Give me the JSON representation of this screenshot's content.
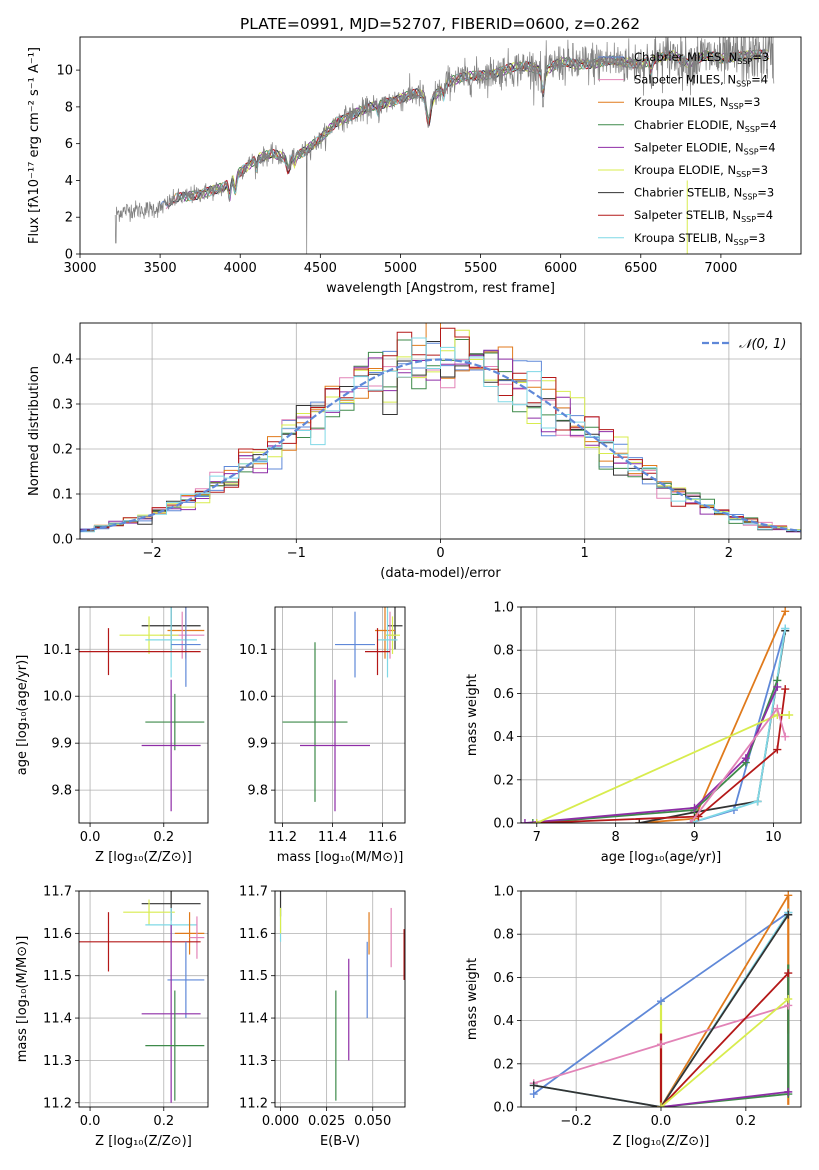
{
  "chart_data": [
    {
      "id": "spectrum",
      "type": "line",
      "title": "PLATE=0991, MJD=52707, FIBERID=0600, z=0.262",
      "xlabel": "wavelength [Angstrom, rest frame]",
      "ylabel": "Flux [fλ10⁻¹⁷ erg cm⁻² s⁻¹ A⁻¹]",
      "xlim": [
        3000,
        7500
      ],
      "ylim": [
        0,
        11.8
      ],
      "xticks": [
        3000,
        3500,
        4000,
        4500,
        5000,
        5500,
        6000,
        6500,
        7000
      ],
      "yticks": [
        0,
        2,
        4,
        6,
        8,
        10
      ],
      "legend_position": "top-right",
      "legend": [
        {
          "label": "Chabrier MILES, N",
          "sub": "SSP",
          "tail": "=3",
          "color": "#5f88d8"
        },
        {
          "label": "Salpeter MILES, N",
          "sub": "SSP",
          "tail": "=4",
          "color": "#e283b7"
        },
        {
          "label": "Kroupa MILES, N",
          "sub": "SSP",
          "tail": "=3",
          "color": "#e07a1c"
        },
        {
          "label": "Chabrier ELODIE, N",
          "sub": "SSP",
          "tail": "=4",
          "color": "#3e8a4a"
        },
        {
          "label": "Salpeter ELODIE, N",
          "sub": "SSP",
          "tail": "=4",
          "color": "#8e2da6"
        },
        {
          "label": "Kroupa ELODIE, N",
          "sub": "SSP",
          "tail": "=3",
          "color": "#d8ec4e"
        },
        {
          "label": "Chabrier STELIB, N",
          "sub": "SSP",
          "tail": "=3",
          "color": "#333333"
        },
        {
          "label": "Salpeter STELIB, N",
          "sub": "SSP",
          "tail": "=4",
          "color": "#b41818"
        },
        {
          "label": "Kroupa STELIB, N",
          "sub": "SSP",
          "tail": "=3",
          "color": "#7fd8e6"
        }
      ],
      "data_trend": {
        "x": [
          3220,
          3300,
          3400,
          3500,
          3600,
          3700,
          3800,
          3900,
          4000,
          4100,
          4200,
          4300,
          4400,
          4500,
          4600,
          4700,
          4800,
          4900,
          5000,
          5100,
          5200,
          5300,
          5400,
          5500,
          5600,
          5700,
          5800,
          5900,
          6000,
          6100,
          6200,
          6300,
          6400,
          6500,
          6600,
          6700,
          6800,
          6900,
          7000,
          7100,
          7200
        ],
        "y": [
          2.2,
          2.4,
          2.4,
          2.5,
          3.0,
          3.2,
          3.4,
          3.6,
          4.5,
          5.2,
          5.4,
          5.2,
          5.6,
          6.2,
          7.2,
          7.6,
          7.9,
          8.2,
          8.5,
          8.7,
          8.5,
          9.4,
          9.6,
          9.7,
          9.9,
          10.1,
          10.2,
          10.0,
          10.4,
          10.3,
          10.4,
          10.5,
          10.4,
          10.4,
          10.6,
          10.8,
          10.4,
          10.8,
          10.6,
          10.8,
          10.8
        ]
      }
    },
    {
      "id": "residuals",
      "type": "histogram",
      "xlabel": "(data-model)/error",
      "ylabel": "Normed distribution",
      "xlim": [
        -2.5,
        2.5
      ],
      "ylim": [
        0,
        0.48
      ],
      "xticks": [
        -2,
        -1,
        0,
        1,
        2
      ],
      "yticks": [
        0.0,
        0.1,
        0.2,
        0.3,
        0.4
      ],
      "legend_position": "top-right",
      "legend": [
        {
          "label": "N(0,1)",
          "label_display": "𝒩(0, 1)",
          "color": "#5f88d8",
          "style": "dashed"
        }
      ],
      "gaussian": {
        "mean": 0,
        "sigma": 1
      },
      "bin_width": 0.1
    },
    {
      "id": "age_vs_Z",
      "type": "scatter",
      "xlabel": "Z [log₁₀(Z/Z⊙)]",
      "ylabel": "age  [log₁₀(age/yr)]",
      "xlim": [
        -0.03,
        0.32
      ],
      "ylim": [
        9.73,
        10.19
      ],
      "xticks": [
        0.0,
        0.2
      ],
      "yticks": [
        9.8,
        9.9,
        10.0,
        10.1
      ],
      "points": [
        {
          "x": 0.22,
          "y": 10.15,
          "xerr": 0.08,
          "yerr": 0.05,
          "color": "#333333"
        },
        {
          "x": 0.26,
          "y": 10.14,
          "xerr": 0.05,
          "yerr": 0.06,
          "color": "#e07a1c"
        },
        {
          "x": 0.25,
          "y": 10.13,
          "xerr": 0.06,
          "yerr": 0.05,
          "color": "#e283b7"
        },
        {
          "x": 0.16,
          "y": 10.13,
          "xerr": 0.08,
          "yerr": 0.04,
          "color": "#d8ec4e"
        },
        {
          "x": 0.22,
          "y": 10.12,
          "xerr": 0.07,
          "yerr": 0.08,
          "color": "#7fd8e6"
        },
        {
          "x": 0.26,
          "y": 10.11,
          "xerr": 0.04,
          "yerr": 0.09,
          "color": "#5f88d8"
        },
        {
          "x": 0.05,
          "y": 10.095,
          "xerr": 0.25,
          "yerr": 0.05,
          "color": "#b41818"
        },
        {
          "x": 0.23,
          "y": 9.945,
          "xerr": 0.08,
          "yerr": 0.06,
          "color": "#3e8a4a"
        },
        {
          "x": 0.22,
          "y": 9.895,
          "xerr": 0.08,
          "yerr": 0.14,
          "color": "#8e2da6"
        }
      ]
    },
    {
      "id": "age_vs_mass",
      "type": "scatter",
      "xlabel": "mass [log₁₀(M/M⊙)]",
      "ylabel": "",
      "xlim": [
        11.17,
        11.69
      ],
      "ylim": [
        9.73,
        10.19
      ],
      "xticks": [
        11.2,
        11.4,
        11.6
      ],
      "yticks": [
        9.8,
        9.9,
        10.0,
        10.1
      ],
      "points": [
        {
          "x": 11.65,
          "y": 10.15,
          "xerr": 0.03,
          "yerr": 0.05,
          "color": "#333333"
        },
        {
          "x": 11.61,
          "y": 10.14,
          "xerr": 0.04,
          "yerr": 0.06,
          "color": "#e07a1c"
        },
        {
          "x": 11.63,
          "y": 10.13,
          "xerr": 0.02,
          "yerr": 0.05,
          "color": "#e283b7"
        },
        {
          "x": 11.64,
          "y": 10.13,
          "xerr": 0.03,
          "yerr": 0.04,
          "color": "#d8ec4e"
        },
        {
          "x": 11.62,
          "y": 10.12,
          "xerr": 0.04,
          "yerr": 0.08,
          "color": "#7fd8e6"
        },
        {
          "x": 11.49,
          "y": 10.11,
          "xerr": 0.08,
          "yerr": 0.07,
          "color": "#5f88d8"
        },
        {
          "x": 11.58,
          "y": 10.095,
          "xerr": 0.05,
          "yerr": 0.05,
          "color": "#b41818"
        },
        {
          "x": 11.33,
          "y": 9.945,
          "xerr": 0.13,
          "yerr": 0.17,
          "color": "#3e8a4a"
        },
        {
          "x": 11.41,
          "y": 9.895,
          "xerr": 0.14,
          "yerr": 0.14,
          "color": "#8e2da6"
        }
      ]
    },
    {
      "id": "weight_vs_age",
      "type": "line",
      "xlabel": "age  [log₁₀(age/yr)]",
      "ylabel": "mass weight",
      "xlim": [
        6.8,
        10.35
      ],
      "ylim": [
        0,
        1.0
      ],
      "xticks": [
        7,
        8,
        9,
        10
      ],
      "yticks": [
        0.0,
        0.2,
        0.4,
        0.6,
        0.8,
        1.0
      ],
      "series": [
        {
          "color": "#e07a1c",
          "x": [
            8.3,
            9.0,
            10.15
          ],
          "y": [
            0.0,
            0.02,
            0.98
          ]
        },
        {
          "color": "#5f88d8",
          "x": [
            8.95,
            9.5,
            10.15
          ],
          "y": [
            0.0,
            0.06,
            0.9
          ]
        },
        {
          "color": "#333333",
          "x": [
            8.3,
            9.0,
            9.8,
            10.15
          ],
          "y": [
            0.0,
            0.05,
            0.1,
            0.89
          ]
        },
        {
          "color": "#7fd8e6",
          "x": [
            8.95,
            9.8,
            10.15
          ],
          "y": [
            0.0,
            0.1,
            0.9
          ]
        },
        {
          "color": "#3e8a4a",
          "x": [
            6.95,
            9.0,
            9.65,
            10.05
          ],
          "y": [
            0.0,
            0.06,
            0.28,
            0.66
          ]
        },
        {
          "color": "#8e2da6",
          "x": [
            6.85,
            9.0,
            9.65,
            10.05
          ],
          "y": [
            0.0,
            0.07,
            0.3,
            0.63
          ]
        },
        {
          "color": "#b41818",
          "x": [
            7.0,
            9.05,
            10.05,
            10.15
          ],
          "y": [
            0.0,
            0.03,
            0.34,
            0.62
          ]
        },
        {
          "color": "#d8ec4e",
          "x": [
            7.0,
            10.05,
            10.2
          ],
          "y": [
            0.0,
            0.5,
            0.5
          ]
        },
        {
          "color": "#e283b7",
          "x": [
            8.95,
            10.05,
            10.15
          ],
          "y": [
            0.0,
            0.53,
            0.4
          ]
        }
      ]
    },
    {
      "id": "mass_vs_Z",
      "type": "scatter",
      "xlabel": "Z [log₁₀(Z/Z⊙)]",
      "ylabel": "mass [log₁₀(M/M⊙)]",
      "xlim": [
        -0.03,
        0.32
      ],
      "ylim": [
        11.19,
        11.7
      ],
      "xticks": [
        0.0,
        0.2
      ],
      "yticks": [
        11.2,
        11.3,
        11.4,
        11.5,
        11.6,
        11.7
      ],
      "points": [
        {
          "x": 0.22,
          "y": 11.67,
          "xerr": 0.08,
          "yerr": 0.04,
          "color": "#333333"
        },
        {
          "x": 0.16,
          "y": 11.65,
          "xerr": 0.07,
          "yerr": 0.03,
          "color": "#d8ec4e"
        },
        {
          "x": 0.22,
          "y": 11.62,
          "xerr": 0.07,
          "yerr": 0.04,
          "color": "#7fd8e6"
        },
        {
          "x": 0.27,
          "y": 11.6,
          "xerr": 0.04,
          "yerr": 0.05,
          "color": "#e07a1c"
        },
        {
          "x": 0.29,
          "y": 11.59,
          "xerr": 0.02,
          "yerr": 0.05,
          "color": "#e283b7"
        },
        {
          "x": 0.05,
          "y": 11.58,
          "xerr": 0.25,
          "yerr": 0.07,
          "color": "#b41818"
        },
        {
          "x": 0.26,
          "y": 11.49,
          "xerr": 0.05,
          "yerr": 0.09,
          "color": "#5f88d8"
        },
        {
          "x": 0.22,
          "y": 11.41,
          "xerr": 0.08,
          "yerr": 0.21,
          "color": "#8e2da6"
        },
        {
          "x": 0.23,
          "y": 11.335,
          "xerr": 0.08,
          "yerr": 0.13,
          "color": "#3e8a4a"
        }
      ]
    },
    {
      "id": "mass_vs_ebv",
      "type": "scatter",
      "xlabel": "E(B-V)",
      "ylabel": "",
      "xlim": [
        -0.003,
        0.0675
      ],
      "ylim": [
        11.19,
        11.7
      ],
      "xticks": [
        0.0,
        0.025,
        0.05
      ],
      "yticks": [
        11.2,
        11.3,
        11.4,
        11.5,
        11.6,
        11.7
      ],
      "points": [
        {
          "x": 0.0,
          "y": 11.67,
          "yerr": 0.03,
          "color": "#333333"
        },
        {
          "x": 0.0,
          "y": 11.62,
          "yerr": 0.04,
          "color": "#7fd8e6"
        },
        {
          "x": 0.0,
          "y": 11.63,
          "yerr": 0.03,
          "color": "#d8ec4e"
        },
        {
          "x": 0.03,
          "y": 11.335,
          "yerr": 0.13,
          "color": "#3e8a4a"
        },
        {
          "x": 0.037,
          "y": 11.42,
          "yerr": 0.12,
          "color": "#8e2da6"
        },
        {
          "x": 0.047,
          "y": 11.49,
          "yerr": 0.09,
          "color": "#5f88d8"
        },
        {
          "x": 0.048,
          "y": 11.6,
          "yerr": 0.05,
          "color": "#e07a1c"
        },
        {
          "x": 0.06,
          "y": 11.59,
          "yerr": 0.07,
          "color": "#e283b7"
        },
        {
          "x": 0.067,
          "y": 11.55,
          "yerr": 0.06,
          "color": "#b41818"
        }
      ]
    },
    {
      "id": "weight_vs_Z",
      "type": "line",
      "xlabel": "Z [log₁₀(Z/Z⊙)]",
      "ylabel": "mass weight",
      "xlim": [
        -0.33,
        0.33
      ],
      "ylim": [
        0,
        1.0
      ],
      "xticks": [
        -0.2,
        0.0,
        0.2
      ],
      "yticks": [
        0.0,
        0.2,
        0.4,
        0.6,
        0.8,
        1.0
      ],
      "series": [
        {
          "color": "#5f88d8",
          "x": [
            -0.3,
            0.0,
            0.3
          ],
          "y": [
            0.06,
            0.49,
            0.9
          ]
        },
        {
          "color": "#e07a1c",
          "x": [
            0.0,
            0.3
          ],
          "y": [
            0.0,
            0.98
          ]
        },
        {
          "color": "#e283b7",
          "x": [
            -0.3,
            0.0,
            0.3
          ],
          "y": [
            0.11,
            0.29,
            0.47
          ]
        },
        {
          "color": "#7fd8e6",
          "x": [
            -0.3,
            0.0,
            0.3
          ],
          "y": [
            0.1,
            0.0,
            0.9
          ]
        },
        {
          "color": "#333333",
          "x": [
            -0.3,
            0.0,
            0.3
          ],
          "y": [
            0.1,
            0.0,
            0.89
          ]
        },
        {
          "color": "#3e8a4a",
          "x": [
            0.0,
            0.3
          ],
          "y": [
            0.0,
            0.06
          ]
        },
        {
          "color": "#8e2da6",
          "x": [
            0.0,
            0.3
          ],
          "y": [
            0.0,
            0.07
          ]
        },
        {
          "color": "#b41818",
          "x": [
            0.0,
            0.3
          ],
          "y": [
            0.0,
            0.62
          ]
        },
        {
          "color": "#d8ec4e",
          "x": [
            0.0,
            0.3
          ],
          "y": [
            0.0,
            0.5
          ]
        }
      ],
      "vertical_segments": [
        {
          "color": "#d8ec4e",
          "x": 0.0,
          "y": [
            0.0,
            0.49
          ]
        },
        {
          "color": "#b41818",
          "x": 0.0,
          "y": [
            0.02,
            0.34
          ]
        },
        {
          "color": "#e07a1c",
          "x": 0.3,
          "y": [
            0.01,
            0.98
          ]
        },
        {
          "color": "#8e2da6",
          "x": 0.3,
          "y": [
            0.06,
            0.63
          ]
        },
        {
          "color": "#b41818",
          "x": 0.3,
          "y": [
            0.34,
            0.62
          ]
        },
        {
          "color": "#3e8a4a",
          "x": 0.3,
          "y": [
            0.05,
            0.66
          ]
        }
      ]
    }
  ]
}
